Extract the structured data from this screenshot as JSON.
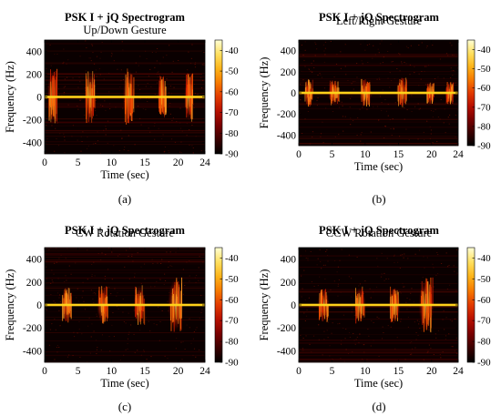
{
  "colormap": [
    "#000000",
    "#3a0000",
    "#7a0000",
    "#b81000",
    "#e23a00",
    "#f77a00",
    "#fcb41a",
    "#ffe060",
    "#ffffd6"
  ],
  "chart_data": [
    {
      "type": "heatmap",
      "title": "PSK I + jQ Spectrogram",
      "subtitle": "Up/Down Gesture",
      "xlabel": "Time (sec)",
      "ylabel": "Frequency (Hz)",
      "xlim": [
        0,
        24
      ],
      "ylim": [
        -500,
        500
      ],
      "xticks": [
        0,
        5,
        10,
        15,
        20,
        24
      ],
      "yticks": [
        400,
        200,
        0,
        -200,
        -400
      ],
      "colorbar": {
        "range": [
          -90,
          -35
        ],
        "ticks": [
          -40,
          -50,
          -60,
          -70,
          -80,
          -90
        ]
      },
      "bursts": [
        {
          "time": 1.2,
          "width": 0.9,
          "extent_hz": 230
        },
        {
          "time": 6.8,
          "width": 1.0,
          "extent_hz": 210
        },
        {
          "time": 12.6,
          "width": 1.0,
          "extent_hz": 230
        },
        {
          "time": 17.6,
          "width": 0.8,
          "extent_hz": 170
        },
        {
          "time": 21.6,
          "width": 0.8,
          "extent_hz": 200
        }
      ],
      "panel_label": "(a)"
    },
    {
      "type": "heatmap",
      "title": "PSK I + jQ Spectrogram",
      "subtitle": "Left/Right Gesture",
      "xlabel": "Time (sec)",
      "ylabel": "Frequency (Hz)",
      "xlim": [
        0,
        24
      ],
      "ylim": [
        -500,
        500
      ],
      "xticks": [
        0,
        5,
        10,
        15,
        20,
        24
      ],
      "yticks": [
        400,
        200,
        0,
        -200,
        -400
      ],
      "colorbar": {
        "range": [
          -90,
          -35
        ],
        "ticks": [
          -40,
          -50,
          -60,
          -70,
          -80,
          -90
        ]
      },
      "bursts": [
        {
          "time": 1.5,
          "width": 0.9,
          "extent_hz": 120
        },
        {
          "time": 5.3,
          "width": 1.0,
          "extent_hz": 110
        },
        {
          "time": 10.0,
          "width": 1.0,
          "extent_hz": 120
        },
        {
          "time": 15.5,
          "width": 1.0,
          "extent_hz": 130
        },
        {
          "time": 19.8,
          "width": 0.8,
          "extent_hz": 100
        },
        {
          "time": 22.7,
          "width": 0.8,
          "extent_hz": 100
        }
      ],
      "panel_label": "(b)"
    },
    {
      "type": "heatmap",
      "title": "PSK I + jQ Spectrogram",
      "subtitle": "CW Rotation Gesture",
      "xlabel": "Time (sec)",
      "ylabel": "Frequency (Hz)",
      "xlim": [
        0,
        24
      ],
      "ylim": [
        -500,
        500
      ],
      "xticks": [
        0,
        5,
        10,
        15,
        20,
        24
      ],
      "yticks": [
        400,
        200,
        0,
        -200,
        -400
      ],
      "colorbar": {
        "range": [
          -90,
          -35
        ],
        "ticks": [
          -40,
          -50,
          -60,
          -70,
          -80,
          -90
        ]
      },
      "bursts": [
        {
          "time": 3.3,
          "width": 1.0,
          "extent_hz": 150
        },
        {
          "time": 8.7,
          "width": 1.0,
          "extent_hz": 150
        },
        {
          "time": 14.2,
          "width": 1.0,
          "extent_hz": 160
        },
        {
          "time": 19.6,
          "width": 1.3,
          "extent_hz": 220
        }
      ],
      "panel_label": "(c)"
    },
    {
      "type": "heatmap",
      "title": "PSK I + jQ Spectrogram",
      "subtitle": "CCW Rotation Gesture",
      "xlabel": "Time (sec)",
      "ylabel": "Frequency (Hz)",
      "xlim": [
        0,
        24
      ],
      "ylim": [
        -500,
        500
      ],
      "xticks": [
        0,
        5,
        10,
        15,
        20,
        24
      ],
      "yticks": [
        400,
        200,
        0,
        -200,
        -400
      ],
      "colorbar": {
        "range": [
          -90,
          -35
        ],
        "ticks": [
          -40,
          -50,
          -60,
          -70,
          -80,
          -90
        ]
      },
      "bursts": [
        {
          "time": 3.7,
          "width": 1.0,
          "extent_hz": 140
        },
        {
          "time": 9.2,
          "width": 1.0,
          "extent_hz": 150
        },
        {
          "time": 14.4,
          "width": 1.0,
          "extent_hz": 150
        },
        {
          "time": 19.2,
          "width": 1.3,
          "extent_hz": 220
        }
      ],
      "panel_label": "(d)"
    }
  ]
}
